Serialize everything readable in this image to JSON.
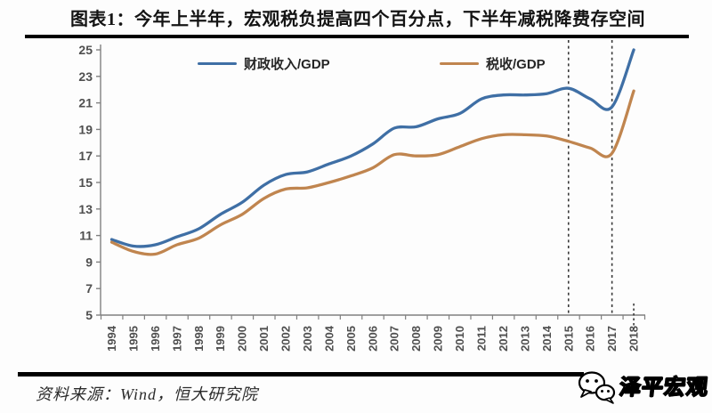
{
  "title": "图表1：今年上半年，宏观税负提高四个百分点，下半年减税降费存空间",
  "source": "资料来源：Wind，恒大研究院",
  "logo": {
    "name": "泽平宏观"
  },
  "colors": {
    "fiscal_line": "#3f6fa5",
    "tax_line": "#c0854f",
    "axis": "#808080",
    "tick_label": "#4f4f4f",
    "dashed": "#3a3a3a",
    "rule": "#000000"
  },
  "chart_data": {
    "type": "line",
    "title": "图表1：今年上半年，宏观税负提高四个百分点，下半年减税降费存空间",
    "x": [
      1994,
      1995,
      1996,
      1997,
      1998,
      1999,
      2000,
      2001,
      2002,
      2003,
      2004,
      2005,
      2006,
      2007,
      2008,
      2009,
      2010,
      2011,
      2012,
      2013,
      2014,
      2015,
      2016,
      2017,
      2018
    ],
    "series": [
      {
        "name": "财政收入/GDP",
        "color": "#3f6fa5",
        "values": [
          10.7,
          10.2,
          10.3,
          10.9,
          11.5,
          12.6,
          13.5,
          14.8,
          15.6,
          15.8,
          16.4,
          17.0,
          17.9,
          19.1,
          19.2,
          19.8,
          20.2,
          21.3,
          21.6,
          21.6,
          21.7,
          22.1,
          21.3,
          20.7,
          25.0
        ]
      },
      {
        "name": "税收/GDP",
        "color": "#c0854f",
        "values": [
          10.5,
          9.8,
          9.6,
          10.3,
          10.8,
          11.8,
          12.6,
          13.8,
          14.5,
          14.6,
          15.0,
          15.5,
          16.1,
          17.1,
          17.0,
          17.1,
          17.7,
          18.3,
          18.6,
          18.6,
          18.5,
          18.1,
          17.6,
          17.2,
          21.9
        ]
      }
    ],
    "xlabel": "",
    "ylabel": "",
    "ylim": [
      5,
      25
    ],
    "ytick_step": 2,
    "grid": false,
    "legend_position": "top-inside",
    "dashed_vlines_x": [
      2015,
      2017
    ],
    "dashed_stub_x": 2018
  }
}
